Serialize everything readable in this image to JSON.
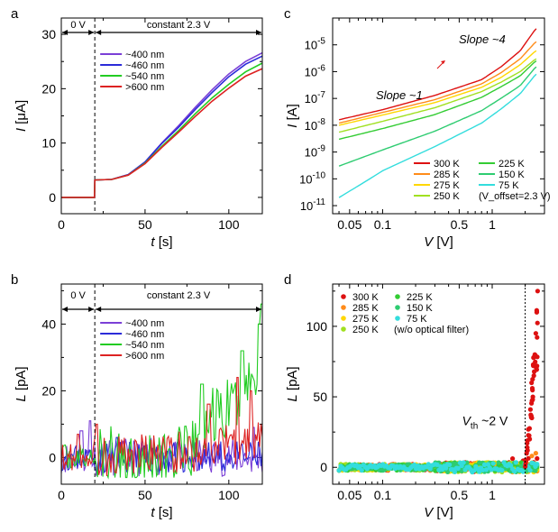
{
  "chart_data": [
    {
      "panel": "a",
      "type": "line",
      "xlabel_italic": "t",
      "xlabel_unit": "[s]",
      "ylabel_italic": "I",
      "ylabel_unit": "[μA]",
      "xlim": [
        0,
        120
      ],
      "ylim": [
        -3,
        33
      ],
      "x_ticks": [
        0,
        50,
        100
      ],
      "y_ticks": [
        0,
        10,
        20,
        30
      ],
      "grid": false,
      "legend_position": "top-center",
      "annotations": {
        "left": "0 V",
        "right": "constant 2.3 V",
        "divider_x": 20
      },
      "series": [
        {
          "name": "~400 nm",
          "color": "#7b3fd6",
          "points": [
            [
              0,
              0
            ],
            [
              19.8,
              0
            ],
            [
              20,
              3.2
            ],
            [
              30,
              3.3
            ],
            [
              40,
              4.2
            ],
            [
              50,
              6.5
            ],
            [
              60,
              10.0
            ],
            [
              70,
              13.2
            ],
            [
              80,
              16.6
            ],
            [
              90,
              19.8
            ],
            [
              100,
              22.7
            ],
            [
              110,
              25.0
            ],
            [
              120,
              26.6
            ]
          ]
        },
        {
          "name": "~460 nm",
          "color": "#2b2bd9",
          "points": [
            [
              0,
              0
            ],
            [
              19.8,
              0
            ],
            [
              20,
              3.2
            ],
            [
              30,
              3.3
            ],
            [
              40,
              4.2
            ],
            [
              50,
              6.5
            ],
            [
              60,
              9.9
            ],
            [
              70,
              12.9
            ],
            [
              80,
              16.2
            ],
            [
              90,
              19.3
            ],
            [
              100,
              22.2
            ],
            [
              110,
              24.5
            ],
            [
              120,
              26.0
            ]
          ]
        },
        {
          "name": "~540 nm",
          "color": "#22cc22",
          "points": [
            [
              0,
              0
            ],
            [
              19.8,
              0
            ],
            [
              20,
              3.2
            ],
            [
              30,
              3.3
            ],
            [
              40,
              4.1
            ],
            [
              50,
              6.3
            ],
            [
              60,
              9.4
            ],
            [
              70,
              12.3
            ],
            [
              80,
              15.4
            ],
            [
              90,
              18.3
            ],
            [
              100,
              20.8
            ],
            [
              110,
              23.1
            ],
            [
              120,
              24.7
            ]
          ]
        },
        {
          "name": ">600 nm",
          "color": "#dd2222",
          "points": [
            [
              0,
              0
            ],
            [
              19.8,
              0
            ],
            [
              20,
              3.2
            ],
            [
              30,
              3.3
            ],
            [
              40,
              4.1
            ],
            [
              50,
              6.2
            ],
            [
              60,
              9.2
            ],
            [
              70,
              12.0
            ],
            [
              80,
              14.9
            ],
            [
              90,
              17.7
            ],
            [
              100,
              20.1
            ],
            [
              110,
              22.3
            ],
            [
              120,
              23.7
            ]
          ]
        }
      ]
    },
    {
      "panel": "b",
      "type": "line",
      "xlabel_italic": "t",
      "xlabel_unit": "[s]",
      "ylabel_italic": "L",
      "ylabel_unit": "[pA]",
      "xlim": [
        0,
        120
      ],
      "ylim": [
        -8,
        52
      ],
      "x_ticks": [
        0,
        50,
        100
      ],
      "y_ticks": [
        0,
        20,
        40
      ],
      "grid": false,
      "legend_position": "top-center",
      "annotations": {
        "left": "0 V",
        "right": "constant 2.3 V",
        "divider_x": 20
      },
      "series": [
        {
          "name": "~400 nm",
          "color": "#7b3fd6",
          "noise": {
            "seed": 11,
            "t_spike": [
              [
                12,
                8
              ],
              [
                17,
                11
              ],
              [
                115,
                9
              ]
            ],
            "amp_low": 3.0,
            "amp_high": 3.5,
            "trend": [
              [
                0,
                0
              ],
              [
                120,
                0
              ]
            ]
          }
        },
        {
          "name": "~460 nm",
          "color": "#2b2bd9",
          "noise": {
            "seed": 23,
            "t_spike": [
              [
                33,
                6
              ],
              [
                70,
                5
              ]
            ],
            "amp_low": 2.5,
            "amp_high": 3.0,
            "trend": [
              [
                0,
                0
              ],
              [
                120,
                0
              ]
            ]
          }
        },
        {
          "name": "~540 nm",
          "color": "#22cc22",
          "noise": {
            "seed": 37,
            "t_spike": [
              [
                84,
                22
              ],
              [
                108,
                32
              ],
              [
                118,
                40
              ],
              [
                120,
                46
              ]
            ],
            "amp_low": 2.5,
            "amp_high": 6.0,
            "trend": [
              [
                0,
                0
              ],
              [
                75,
                0
              ],
              [
                80,
                3
              ],
              [
                90,
                12
              ],
              [
                100,
                14
              ],
              [
                110,
                20
              ],
              [
                120,
                30
              ]
            ]
          }
        },
        {
          "name": ">600 nm",
          "color": "#dd2222",
          "noise": {
            "seed": 53,
            "t_spike": [
              [
                10,
                7
              ],
              [
                21,
                10
              ],
              [
                88,
                16
              ],
              [
                105,
                24
              ],
              [
                113,
                20
              ]
            ],
            "amp_low": 2.5,
            "amp_high": 4.0,
            "trend": [
              [
                0,
                0
              ],
              [
                80,
                2
              ],
              [
                100,
                4
              ],
              [
                120,
                5
              ]
            ]
          }
        }
      ]
    },
    {
      "panel": "c",
      "type": "line",
      "xscale": "log",
      "yscale": "log",
      "xlabel_italic": "V",
      "xlabel_unit": "[V]",
      "ylabel_italic": "I",
      "ylabel_unit": "[A]",
      "xlim": [
        0.035,
        3.0
      ],
      "ylim": [
        5e-12,
        0.0001
      ],
      "x_ticks": [
        0.05,
        0.1,
        0.5,
        1
      ],
      "y_tick_exponents": [
        -11,
        -10,
        -9,
        -8,
        -7,
        -6,
        -5
      ],
      "grid": false,
      "legend_position": "bottom-right",
      "legend_note": "(V_offset=2.3 V)",
      "annotations": {
        "slope1": "Slope ~1",
        "slope4": "Slope ~4"
      },
      "series": [
        {
          "name": "300 K",
          "color": "#dd1111",
          "points": [
            [
              0.04,
              1.6e-08
            ],
            [
              0.1,
              3.8e-08
            ],
            [
              0.3,
              1.3e-07
            ],
            [
              0.8,
              5e-07
            ],
            [
              1.2,
              1.5e-06
            ],
            [
              1.8,
              6e-06
            ],
            [
              2.5,
              4e-05
            ]
          ]
        },
        {
          "name": "285 K",
          "color": "#ff8c1a",
          "points": [
            [
              0.04,
              1.2e-08
            ],
            [
              0.1,
              3e-08
            ],
            [
              0.3,
              9e-08
            ],
            [
              0.8,
              3.5e-07
            ],
            [
              1.2,
              9e-07
            ],
            [
              1.8,
              3e-06
            ],
            [
              2.5,
              1.3e-05
            ]
          ]
        },
        {
          "name": "275 K",
          "color": "#ffd700",
          "points": [
            [
              0.04,
              1e-08
            ],
            [
              0.1,
              2.4e-08
            ],
            [
              0.3,
              7e-08
            ],
            [
              0.8,
              2.6e-07
            ],
            [
              1.2,
              6e-07
            ],
            [
              1.8,
              1.8e-06
            ],
            [
              2.5,
              6e-06
            ]
          ]
        },
        {
          "name": "250 K",
          "color": "#a0e020",
          "points": [
            [
              0.04,
              5.5e-09
            ],
            [
              0.1,
              1.4e-08
            ],
            [
              0.3,
              4.5e-08
            ],
            [
              0.8,
              1.8e-07
            ],
            [
              1.2,
              4e-07
            ],
            [
              1.8,
              1e-06
            ],
            [
              2.5,
              3e-06
            ]
          ]
        },
        {
          "name": "225 K",
          "color": "#33cc33",
          "points": [
            [
              0.04,
              3e-09
            ],
            [
              0.1,
              7.5e-09
            ],
            [
              0.3,
              2.5e-08
            ],
            [
              0.8,
              1.1e-07
            ],
            [
              1.2,
              2.7e-07
            ],
            [
              1.8,
              7e-07
            ],
            [
              2.5,
              2.5e-06
            ]
          ]
        },
        {
          "name": "150 K",
          "color": "#2ecc71",
          "points": [
            [
              0.04,
              3e-10
            ],
            [
              0.1,
              1.2e-09
            ],
            [
              0.3,
              6e-09
            ],
            [
              0.8,
              3.5e-08
            ],
            [
              1.2,
              1e-07
            ],
            [
              1.8,
              3e-07
            ],
            [
              2.5,
              1.5e-06
            ]
          ]
        },
        {
          "name": "75 K",
          "color": "#33dddd",
          "points": [
            [
              0.04,
              2e-11
            ],
            [
              0.07,
              8e-11
            ],
            [
              0.1,
              2e-10
            ],
            [
              0.3,
              1.6e-09
            ],
            [
              0.8,
              1.2e-08
            ],
            [
              1.2,
              4e-08
            ],
            [
              1.8,
              1.5e-07
            ],
            [
              2.5,
              8e-07
            ]
          ]
        }
      ]
    },
    {
      "panel": "d",
      "type": "scatter",
      "xscale": "log",
      "xlabel_italic": "V",
      "xlabel_unit": "[V]",
      "ylabel_italic": "L",
      "ylabel_unit": "[pA]",
      "xlim": [
        0.035,
        3.0
      ],
      "ylim": [
        -12,
        130
      ],
      "x_ticks": [
        0.05,
        0.1,
        0.5,
        1
      ],
      "y_ticks": [
        0,
        50,
        100
      ],
      "grid": false,
      "legend_position": "top-left",
      "legend_note": "(w/o optical filter)",
      "annotations": {
        "vth_label": "~2 V",
        "vth_x": 2.0
      },
      "series": [
        {
          "name": "300 K",
          "color": "#dd1111",
          "rise": [
            [
              2.0,
              5
            ],
            [
              2.1,
              12
            ],
            [
              2.2,
              20
            ],
            [
              2.3,
              35
            ],
            [
              2.35,
              50
            ],
            [
              2.4,
              65
            ],
            [
              2.45,
              80
            ],
            [
              2.5,
              95
            ],
            [
              2.55,
              110
            ],
            [
              2.6,
              125
            ]
          ]
        },
        {
          "name": "285 K",
          "color": "#ff8c1a",
          "rise": [
            [
              2.3,
              8
            ],
            [
              2.5,
              10
            ]
          ]
        },
        {
          "name": "275 K",
          "color": "#ffd700",
          "rise": []
        },
        {
          "name": "250 K",
          "color": "#a0e020",
          "rise": []
        },
        {
          "name": "225 K",
          "color": "#33cc33",
          "rise": []
        },
        {
          "name": "150 K",
          "color": "#2ecc71",
          "rise": []
        },
        {
          "name": "75 K",
          "color": "#33dddd",
          "rise": []
        }
      ]
    }
  ]
}
